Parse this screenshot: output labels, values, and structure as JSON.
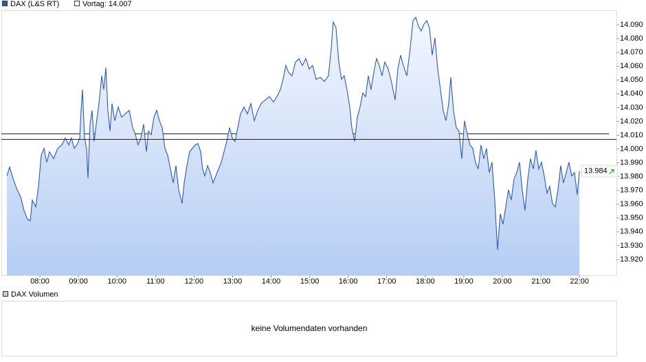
{
  "chart_data": {
    "type": "line",
    "series": [
      {
        "name": "DAX (L&S RT)",
        "color": "#2a5bb5",
        "x": [
          7.143,
          7.214,
          7.321,
          7.41,
          7.499,
          7.588,
          7.678,
          7.749,
          7.802,
          7.892,
          7.963,
          8.034,
          8.106,
          8.177,
          8.248,
          8.355,
          8.462,
          8.569,
          8.658,
          8.748,
          8.819,
          8.89,
          8.961,
          9.033,
          9.068,
          9.104,
          9.158,
          9.211,
          9.247,
          9.3,
          9.354,
          9.407,
          9.461,
          9.532,
          9.603,
          9.657,
          9.71,
          9.764,
          9.817,
          9.871,
          9.942,
          10.031,
          10.12,
          10.21,
          10.317,
          10.406,
          10.477,
          10.548,
          10.62,
          10.691,
          10.762,
          10.816,
          10.887,
          10.958,
          11.03,
          11.101,
          11.172,
          11.244,
          11.315,
          11.386,
          11.458,
          11.529,
          11.6,
          11.69,
          11.743,
          11.814,
          11.886,
          11.957,
          12.028,
          12.1,
          12.171,
          12.224,
          12.278,
          12.349,
          12.42,
          12.492,
          12.563,
          12.634,
          12.706,
          12.777,
          12.848,
          12.92,
          12.991,
          13.062,
          13.134,
          13.205,
          13.294,
          13.383,
          13.473,
          13.562,
          13.651,
          13.74,
          13.847,
          13.954,
          14.061,
          14.168,
          14.239,
          14.31,
          14.382,
          14.453,
          14.542,
          14.631,
          14.721,
          14.81,
          14.899,
          14.988,
          15.077,
          15.166,
          15.273,
          15.38,
          15.487,
          15.559,
          15.612,
          15.683,
          15.755,
          15.826,
          15.897,
          15.968,
          16.04,
          16.093,
          16.165,
          16.236,
          16.307,
          16.378,
          16.45,
          16.521,
          16.592,
          16.664,
          16.735,
          16.806,
          16.878,
          16.949,
          17.038,
          17.127,
          17.217,
          17.288,
          17.359,
          17.431,
          17.52,
          17.609,
          17.68,
          17.751,
          17.823,
          17.894,
          17.965,
          18.037,
          18.108,
          18.179,
          18.251,
          18.322,
          18.393,
          18.465,
          18.536,
          18.607,
          18.661,
          18.732,
          18.804,
          18.875,
          18.946,
          19.017,
          19.089,
          19.16,
          19.231,
          19.303,
          19.374,
          19.445,
          19.517,
          19.588,
          19.659,
          19.731,
          19.802,
          19.873,
          19.945,
          20.016,
          20.087,
          20.159,
          20.23,
          20.301,
          20.373,
          20.444,
          20.515,
          20.586,
          20.658,
          20.729,
          20.8,
          20.872,
          20.943,
          21.014,
          21.086,
          21.157,
          21.228,
          21.3,
          21.371,
          21.442,
          21.513,
          21.585,
          21.656,
          21.727,
          21.799,
          21.87,
          21.941,
          22.0
        ],
        "values": [
          13.9805,
          13.987,
          13.977,
          13.9705,
          13.9655,
          13.9555,
          13.949,
          13.948,
          13.963,
          13.958,
          13.973,
          13.9955,
          14.0005,
          13.9905,
          13.998,
          13.993,
          14.0005,
          14.003,
          14.008,
          14.003,
          14.008,
          14.0005,
          14.003,
          14.008,
          14.028,
          14.043,
          14.008,
          14.0005,
          13.979,
          14.018,
          14.028,
          14.0055,
          14.018,
          14.033,
          14.053,
          14.043,
          14.059,
          14.028,
          14.013,
          14.033,
          14.0205,
          14.0305,
          14.023,
          14.0255,
          14.028,
          14.0155,
          14.0105,
          14.003,
          14.008,
          14.018,
          13.998,
          14.013,
          14.0105,
          14.023,
          14.028,
          14.0205,
          14.0155,
          14.0005,
          13.9955,
          13.9855,
          13.9755,
          13.988,
          13.9705,
          13.9605,
          13.9755,
          13.988,
          13.998,
          14.0005,
          14.003,
          14.004,
          13.998,
          13.9855,
          13.9805,
          13.988,
          13.983,
          13.9755,
          13.9805,
          13.9855,
          13.9905,
          13.998,
          14.0055,
          14.0155,
          14.008,
          14.0055,
          14.0155,
          14.0255,
          14.0305,
          14.0255,
          14.033,
          14.0205,
          14.028,
          14.033,
          14.0355,
          14.038,
          14.034,
          14.039,
          14.043,
          14.0505,
          14.0605,
          14.0555,
          14.053,
          14.063,
          14.0655,
          14.0605,
          14.0655,
          14.058,
          14.0605,
          14.0505,
          14.052,
          14.049,
          14.053,
          14.073,
          14.092,
          14.088,
          14.063,
          14.0505,
          14.053,
          14.043,
          14.0305,
          14.0155,
          14.0055,
          14.023,
          14.0305,
          14.0405,
          14.038,
          14.053,
          14.043,
          14.0555,
          14.0655,
          14.0605,
          14.053,
          14.063,
          14.058,
          14.048,
          14.0355,
          14.058,
          14.068,
          14.0605,
          14.053,
          14.073,
          14.093,
          14.0955,
          14.089,
          14.0855,
          14.0905,
          14.093,
          14.088,
          14.068,
          14.0805,
          14.058,
          14.043,
          14.028,
          14.0205,
          14.033,
          14.052,
          14.028,
          14.0155,
          14.013,
          13.993,
          14.0205,
          14.0105,
          14.003,
          14.0005,
          13.9905,
          13.9855,
          14.003,
          13.993,
          14.0005,
          13.983,
          13.9905,
          13.963,
          13.927,
          13.953,
          13.9455,
          13.958,
          13.9705,
          13.963,
          13.978,
          13.983,
          13.9905,
          13.9705,
          13.9555,
          13.978,
          13.993,
          13.9855,
          13.999,
          13.9855,
          13.9905,
          13.9805,
          13.968,
          13.973,
          13.9605,
          13.958,
          13.9705,
          13.988,
          13.9755,
          13.983,
          13.9905,
          13.9805,
          13.983,
          13.967,
          13.984
        ]
      }
    ],
    "fill_gradient": [
      "#f3f7fe",
      "#b5cdf4"
    ],
    "previous_close": {
      "value": 14.007,
      "label": "Vortag: 14.007"
    },
    "reference_lines": [
      14.011
    ],
    "xlim": [
      7,
      22.96
    ],
    "ylim": [
      13.9085,
      14.1005
    ],
    "xticks": [
      {
        "value": 8,
        "label": "08:00"
      },
      {
        "value": 9,
        "label": "09:00"
      },
      {
        "value": 10,
        "label": "10:00"
      },
      {
        "value": 11,
        "label": "11:00"
      },
      {
        "value": 12,
        "label": "12:00"
      },
      {
        "value": 13,
        "label": "13:00"
      },
      {
        "value": 14,
        "label": "14:00"
      },
      {
        "value": 15,
        "label": "15:00"
      },
      {
        "value": 16,
        "label": "16:00"
      },
      {
        "value": 17,
        "label": "17:00"
      },
      {
        "value": 18,
        "label": "18:00"
      },
      {
        "value": 19,
        "label": "19:00"
      },
      {
        "value": 20,
        "label": "20:00"
      },
      {
        "value": 21,
        "label": "21:00"
      },
      {
        "value": 22,
        "label": "22:00"
      }
    ],
    "yticks": [
      {
        "value": 13.92,
        "label": "13.920"
      },
      {
        "value": 13.93,
        "label": "13.930"
      },
      {
        "value": 13.94,
        "label": "13.940"
      },
      {
        "value": 13.95,
        "label": "13.950"
      },
      {
        "value": 13.96,
        "label": "13.960"
      },
      {
        "value": 13.97,
        "label": "13.970"
      },
      {
        "value": 13.98,
        "label": "13.980"
      },
      {
        "value": 13.99,
        "label": "13.990"
      },
      {
        "value": 14.0,
        "label": "14.000"
      },
      {
        "value": 14.01,
        "label": "14.010"
      },
      {
        "value": 14.02,
        "label": "14.020"
      },
      {
        "value": 14.03,
        "label": "14.030"
      },
      {
        "value": 14.04,
        "label": "14.040"
      },
      {
        "value": 14.05,
        "label": "14.050"
      },
      {
        "value": 14.06,
        "label": "14.060"
      },
      {
        "value": 14.07,
        "label": "14.070"
      },
      {
        "value": 14.08,
        "label": "14.080"
      },
      {
        "value": 14.09,
        "label": "14.090"
      }
    ],
    "grid": false
  },
  "volume_panel": {
    "title": "DAX Volumen",
    "message": "keine Volumendaten vorhanden"
  }
}
